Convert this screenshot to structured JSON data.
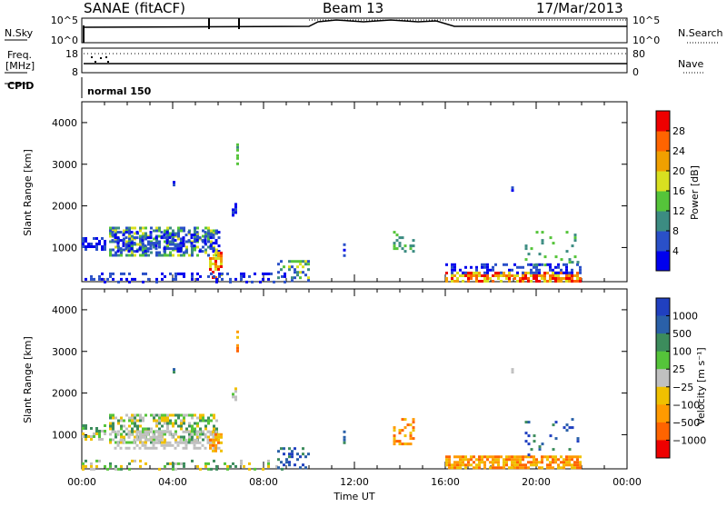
{
  "header": {
    "station": "SANAE (fitACF)",
    "beam": "Beam 13",
    "date": "17/Mar/2013"
  },
  "top_panels": {
    "nsky_label": "N.Sky",
    "nsky_ticks": [
      "10^5",
      "10^0"
    ],
    "nsearch_label": "N.Search",
    "nsearch_ticks": [
      "10^5",
      "10^0"
    ],
    "freq_label": "Freq.",
    "freq_unit": "[MHz]",
    "freq_ticks": [
      "18",
      "8"
    ],
    "nave_label": "Nave",
    "nave_ticks": [
      "80",
      "0"
    ],
    "cpid_label": "CPID",
    "cpid_value": "normal 150"
  },
  "chart_data": [
    {
      "type": "heatmap",
      "name": "power",
      "ylabel": "Slant Range [km]",
      "ylim": [
        180,
        4500
      ],
      "yticks": [
        "1000",
        "2000",
        "3000",
        "4000"
      ],
      "xlim": [
        0,
        24
      ],
      "colorbar_label": "Power [dB]",
      "colorbar_ticks": [
        "4",
        "8",
        "12",
        "16",
        "20",
        "24",
        "28"
      ],
      "colors": [
        "#0000ee",
        "#2a50c8",
        "#3c8c82",
        "#55c43a",
        "#d8e020",
        "#f0a000",
        "#ff6400",
        "#ee0000"
      ]
    },
    {
      "type": "heatmap",
      "name": "velocity",
      "ylabel": "Slant Range [km]",
      "ylim": [
        180,
        4500
      ],
      "yticks": [
        "1000",
        "2000",
        "3000",
        "4000"
      ],
      "xlim": [
        0,
        24
      ],
      "xlabel": "Time UT",
      "xticks": [
        "00:00",
        "04:00",
        "08:00",
        "12:00",
        "16:00",
        "20:00",
        "00:00"
      ],
      "colorbar_label": "Velocity [m s⁻¹]",
      "colorbar_ticks": [
        "1000",
        "500",
        "100",
        "25",
        "−25",
        "−100",
        "−500",
        "−1000"
      ],
      "colors": [
        "#2040c0",
        "#2a60a8",
        "#3c8c5c",
        "#55c43a",
        "#c0c0c0",
        "#f0c000",
        "#ff9a00",
        "#ff6400",
        "#ee0000"
      ]
    }
  ]
}
